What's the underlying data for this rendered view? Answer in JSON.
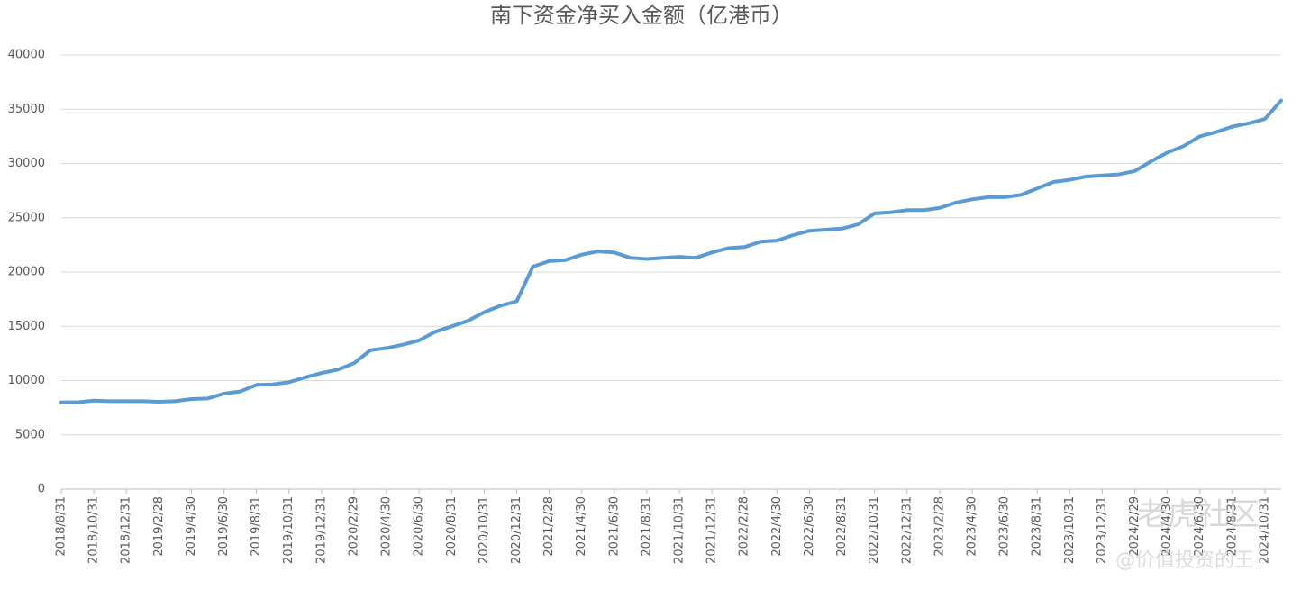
{
  "chart_data": {
    "type": "line",
    "title": "南下资金净买入金额（亿港币）",
    "categories": [
      "2018/8/31",
      null,
      "2018/10/31",
      null,
      "2018/12/31",
      null,
      "2019/2/28",
      null,
      "2019/4/30",
      null,
      "2019/6/30",
      null,
      "2019/8/31",
      null,
      "2019/10/31",
      null,
      "2019/12/31",
      null,
      "2020/2/29",
      null,
      "2020/4/30",
      null,
      "2020/6/30",
      null,
      "2020/8/31",
      null,
      "2020/10/31",
      null,
      "2020/12/31",
      null,
      "2021/2/28",
      null,
      "2021/4/30",
      null,
      "2021/6/30",
      null,
      "2021/8/31",
      null,
      "2021/10/31",
      null,
      "2021/12/31",
      null,
      "2022/2/28",
      null,
      "2022/4/30",
      null,
      "2022/6/30",
      null,
      "2022/8/31",
      null,
      "2022/10/31",
      null,
      "2022/12/31",
      null,
      "2023/2/28",
      null,
      "2023/4/30",
      null,
      "2023/6/30",
      null,
      "2023/8/31",
      null,
      "2023/10/31",
      null,
      "2023/12/31",
      null,
      "2024/2/29",
      null,
      "2024/4/30",
      null,
      "2024/6/30",
      null,
      "2024/8/31",
      null,
      "2024/10/31",
      null
    ],
    "series": [
      {
        "name": "南下资金净买入金额",
        "color": "#5b9bd5",
        "values": [
          8000,
          8000,
          8150,
          8100,
          8100,
          8100,
          8050,
          8100,
          8300,
          8350,
          8800,
          9000,
          9600,
          9650,
          9850,
          10300,
          10700,
          11000,
          11600,
          12800,
          13000,
          13300,
          13700,
          14500,
          15000,
          15500,
          16300,
          16900,
          17300,
          20500,
          21000,
          21100,
          21600,
          21900,
          21800,
          21300,
          21200,
          21300,
          21400,
          21300,
          21800,
          22200,
          22300,
          22800,
          22900,
          23400,
          23800,
          23900,
          24000,
          24400,
          25400,
          25500,
          25700,
          25700,
          25900,
          26400,
          26700,
          26900,
          26900,
          27100,
          27700,
          28300,
          28500,
          28800,
          28900,
          29000,
          29300,
          30200,
          31000,
          31600,
          32500,
          32900,
          33400,
          33700,
          34100,
          35800
        ]
      }
    ],
    "ylim": [
      0,
      40000
    ],
    "yticks": [
      0,
      5000,
      10000,
      15000,
      20000,
      25000,
      30000,
      35000,
      40000
    ],
    "grid": true,
    "watermark": [
      "老虎社区",
      "@价值投资的王"
    ]
  }
}
